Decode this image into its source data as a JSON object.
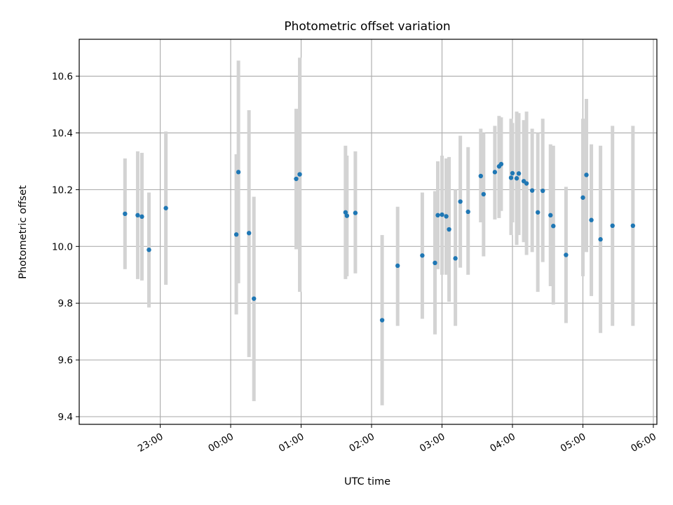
{
  "chart_data": {
    "type": "scatter",
    "title": "Photometric offset variation",
    "xlabel": "UTC time",
    "ylabel": "Photometric offset",
    "x_ticks": [
      "23:00",
      "00:00",
      "01:00",
      "02:00",
      "03:00",
      "04:00",
      "05:00",
      "06:00"
    ],
    "y_ticks": [
      "9.4",
      "9.6",
      "9.8",
      "10.0",
      "10.2",
      "10.4",
      "10.6"
    ],
    "xlim_hours": [
      21.85,
      30.05
    ],
    "ylim": [
      9.373,
      10.73
    ],
    "grid": true,
    "colors": {
      "point": "#1f77b4",
      "errorbar": "#d3d3d3",
      "grid": "#b0b0b0"
    },
    "points": [
      {
        "x_hours": 22.5,
        "y": 10.115,
        "ylo": 9.92,
        "yhi": 10.31
      },
      {
        "x_hours": 22.68,
        "y": 10.11,
        "ylo": 9.885,
        "yhi": 10.335
      },
      {
        "x_hours": 22.74,
        "y": 10.105,
        "ylo": 9.88,
        "yhi": 10.33
      },
      {
        "x_hours": 22.84,
        "y": 9.988,
        "ylo": 9.785,
        "yhi": 10.19
      },
      {
        "x_hours": 23.08,
        "y": 10.135,
        "ylo": 9.865,
        "yhi": 10.405
      },
      {
        "x_hours": 24.08,
        "y": 10.042,
        "ylo": 9.76,
        "yhi": 10.325
      },
      {
        "x_hours": 24.11,
        "y": 10.262,
        "ylo": 9.87,
        "yhi": 10.655
      },
      {
        "x_hours": 24.26,
        "y": 10.047,
        "ylo": 9.61,
        "yhi": 10.48
      },
      {
        "x_hours": 24.33,
        "y": 9.816,
        "ylo": 9.455,
        "yhi": 10.175
      },
      {
        "x_hours": 24.93,
        "y": 10.238,
        "ylo": 9.99,
        "yhi": 10.485
      },
      {
        "x_hours": 24.98,
        "y": 10.254,
        "ylo": 9.84,
        "yhi": 10.665
      },
      {
        "x_hours": 25.63,
        "y": 10.12,
        "ylo": 9.885,
        "yhi": 10.355
      },
      {
        "x_hours": 25.65,
        "y": 10.108,
        "ylo": 9.895,
        "yhi": 10.32
      },
      {
        "x_hours": 25.77,
        "y": 10.118,
        "ylo": 9.905,
        "yhi": 10.335
      },
      {
        "x_hours": 26.15,
        "y": 9.74,
        "ylo": 9.44,
        "yhi": 10.04
      },
      {
        "x_hours": 26.37,
        "y": 9.932,
        "ylo": 9.72,
        "yhi": 10.14
      },
      {
        "x_hours": 26.72,
        "y": 9.968,
        "ylo": 9.745,
        "yhi": 10.19
      },
      {
        "x_hours": 26.9,
        "y": 9.942,
        "ylo": 9.69,
        "yhi": 10.195
      },
      {
        "x_hours": 26.94,
        "y": 10.11,
        "ylo": 9.92,
        "yhi": 10.3
      },
      {
        "x_hours": 27.0,
        "y": 10.112,
        "ylo": 9.9,
        "yhi": 10.32
      },
      {
        "x_hours": 27.06,
        "y": 10.106,
        "ylo": 9.9,
        "yhi": 10.31
      },
      {
        "x_hours": 27.1,
        "y": 10.06,
        "ylo": 9.805,
        "yhi": 10.315
      },
      {
        "x_hours": 27.19,
        "y": 9.958,
        "ylo": 9.72,
        "yhi": 10.2
      },
      {
        "x_hours": 27.26,
        "y": 10.158,
        "ylo": 9.925,
        "yhi": 10.39
      },
      {
        "x_hours": 27.37,
        "y": 10.122,
        "ylo": 9.9,
        "yhi": 10.35
      },
      {
        "x_hours": 27.55,
        "y": 10.248,
        "ylo": 10.085,
        "yhi": 10.415
      },
      {
        "x_hours": 27.59,
        "y": 10.184,
        "ylo": 9.965,
        "yhi": 10.4
      },
      {
        "x_hours": 27.75,
        "y": 10.262,
        "ylo": 10.095,
        "yhi": 10.425
      },
      {
        "x_hours": 27.81,
        "y": 10.282,
        "ylo": 10.1,
        "yhi": 10.46
      },
      {
        "x_hours": 27.84,
        "y": 10.29,
        "ylo": 10.125,
        "yhi": 10.455
      },
      {
        "x_hours": 27.98,
        "y": 10.242,
        "ylo": 10.04,
        "yhi": 10.45
      },
      {
        "x_hours": 28.0,
        "y": 10.258,
        "ylo": 10.085,
        "yhi": 10.435
      },
      {
        "x_hours": 28.06,
        "y": 10.24,
        "ylo": 10.005,
        "yhi": 10.475
      },
      {
        "x_hours": 28.09,
        "y": 10.257,
        "ylo": 10.04,
        "yhi": 10.47
      },
      {
        "x_hours": 28.16,
        "y": 10.23,
        "ylo": 10.015,
        "yhi": 10.445
      },
      {
        "x_hours": 28.2,
        "y": 10.222,
        "ylo": 9.97,
        "yhi": 10.475
      },
      {
        "x_hours": 28.28,
        "y": 10.197,
        "ylo": 9.98,
        "yhi": 10.415
      },
      {
        "x_hours": 28.36,
        "y": 10.12,
        "ylo": 9.84,
        "yhi": 10.4
      },
      {
        "x_hours": 28.43,
        "y": 10.196,
        "ylo": 9.945,
        "yhi": 10.45
      },
      {
        "x_hours": 28.54,
        "y": 10.11,
        "ylo": 9.86,
        "yhi": 10.36
      },
      {
        "x_hours": 28.58,
        "y": 10.072,
        "ylo": 9.795,
        "yhi": 10.355
      },
      {
        "x_hours": 28.76,
        "y": 9.97,
        "ylo": 9.73,
        "yhi": 10.21
      },
      {
        "x_hours": 29.0,
        "y": 10.172,
        "ylo": 9.895,
        "yhi": 10.45
      },
      {
        "x_hours": 29.05,
        "y": 10.252,
        "ylo": 9.98,
        "yhi": 10.52
      },
      {
        "x_hours": 29.12,
        "y": 10.093,
        "ylo": 9.825,
        "yhi": 10.36
      },
      {
        "x_hours": 29.25,
        "y": 10.025,
        "ylo": 9.695,
        "yhi": 10.355
      },
      {
        "x_hours": 29.42,
        "y": 10.073,
        "ylo": 9.72,
        "yhi": 10.425
      },
      {
        "x_hours": 29.71,
        "y": 10.073,
        "ylo": 9.72,
        "yhi": 10.425
      }
    ]
  }
}
